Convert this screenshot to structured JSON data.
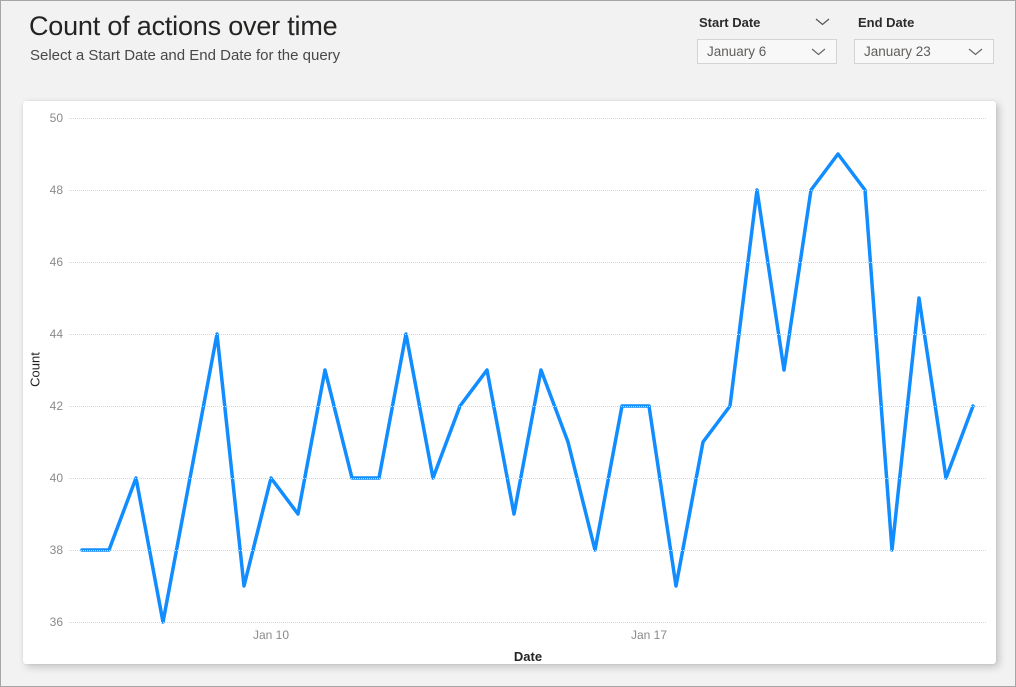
{
  "page": {
    "title": "Count of actions over time",
    "subtitle": "Select a Start Date and End Date for the query"
  },
  "slicers": {
    "start_date": {
      "label": "Start Date",
      "value": "January 6"
    },
    "end_date": {
      "label": "End Date",
      "value": "January 23"
    }
  },
  "colors": {
    "accent_line": "#118DFF",
    "page_background": "#f2f2f2",
    "card_background": "#ffffff",
    "gridline": "#d7d7d7",
    "tick_text": "#8a8a8a"
  },
  "chart_data": {
    "type": "line",
    "title": "",
    "xlabel": "Date",
    "ylabel": "Count",
    "ylim": [
      36,
      50
    ],
    "y_ticks": [
      50,
      48,
      46,
      44,
      42,
      40,
      38,
      36
    ],
    "grid": "dotted-horizontal",
    "legend": "none",
    "series_name": "Count of actions",
    "x_description": "half-day intervals from January 6 to January 23",
    "x_tick_labels": [
      {
        "index": 7,
        "label": "Jan 10"
      },
      {
        "index": 21,
        "label": "Jan 17"
      }
    ],
    "values": [
      38,
      38,
      40,
      36,
      40,
      44,
      37,
      40,
      39,
      43,
      40,
      40,
      44,
      40,
      42,
      43,
      39,
      43,
      41,
      38,
      42,
      42,
      37,
      41,
      42,
      48,
      43,
      48,
      49,
      48,
      38,
      45,
      40,
      42
    ],
    "line_color": "#118DFF",
    "line_width": 3.5
  }
}
